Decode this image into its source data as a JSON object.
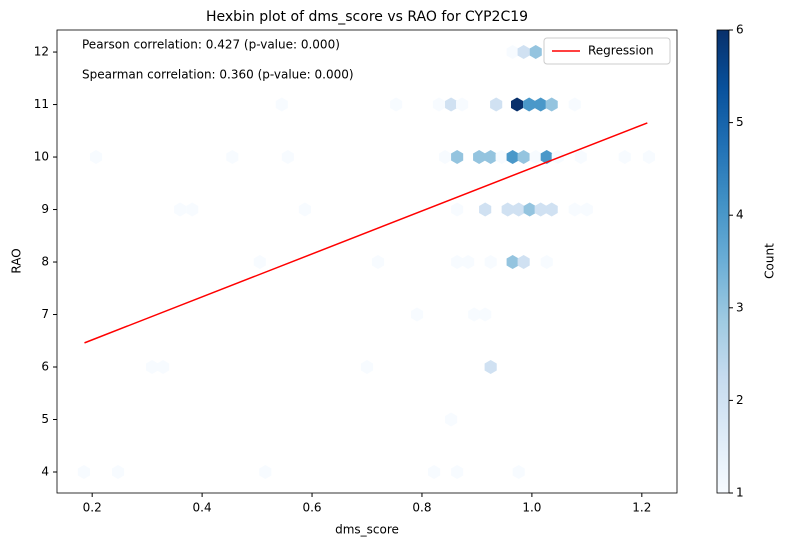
{
  "chart_data": {
    "type": "hexbin",
    "title": "Hexbin plot of dms_score vs RAO for CYP2C19",
    "xlabel": "dms_score",
    "ylabel": "RAO",
    "xlim": [
      0.136,
      1.264
    ],
    "ylim": [
      3.6,
      12.42
    ],
    "xticks": [
      0.2,
      0.4,
      0.6,
      0.8,
      {
        "value": 1,
        "label": "1.0"
      },
      1.2
    ],
    "yticks": [
      4,
      5,
      6,
      7,
      8,
      9,
      10,
      11,
      12
    ],
    "hexes": {
      "x": [
        0.965,
        0.985,
        1.007,
        0.545,
        0.753,
        0.831,
        0.853,
        0.873,
        0.935,
        0.973,
        0.995,
        1.016,
        1.036,
        1.078,
        0.207,
        0.455,
        0.556,
        0.842,
        0.864,
        0.904,
        0.925,
        0.945,
        0.965,
        0.985,
        1.007,
        1.027,
        1.047,
        1.089,
        1.169,
        1.213,
        0.36,
        0.382,
        0.587,
        0.864,
        0.915,
        0.956,
        0.976,
        0.996,
        1.016,
        1.036,
        1.078,
        1.1,
        0.505,
        0.72,
        0.864,
        0.884,
        0.925,
        0.965,
        0.985,
        1.027,
        0.791,
        0.895,
        0.915,
        0.309,
        0.329,
        0.7,
        0.925,
        0.853,
        0.185,
        0.247,
        0.515,
        0.822,
        0.864,
        0.976
      ],
      "y": [
        12,
        12,
        12,
        11,
        11,
        11,
        11,
        11,
        11,
        11,
        11,
        11,
        11,
        11,
        10,
        10,
        10,
        10,
        10,
        10,
        10,
        10,
        10,
        10,
        10,
        10,
        10,
        10,
        10,
        10,
        9,
        9,
        9,
        9,
        9,
        9,
        9,
        9,
        9,
        9,
        9,
        9,
        8,
        8,
        8,
        8,
        8,
        8,
        8,
        8,
        7,
        7,
        7,
        6,
        6,
        6,
        6,
        5,
        4,
        4,
        4,
        4,
        4,
        4
      ],
      "counts": [
        1,
        2,
        3,
        1,
        1,
        1,
        2,
        1,
        2,
        6,
        4,
        4,
        3,
        1,
        1,
        1,
        1,
        1,
        3,
        3,
        3,
        1,
        4,
        3,
        1,
        4,
        1,
        1,
        1,
        1,
        1,
        1,
        1,
        1,
        2,
        2,
        2,
        3,
        2,
        2,
        1,
        1,
        1,
        1,
        1,
        1,
        1,
        3,
        2,
        1,
        1,
        1,
        1,
        1,
        1,
        1,
        2,
        1,
        1,
        1,
        1,
        1,
        1,
        1
      ]
    },
    "lines": [
      {
        "name": "Regression",
        "color": "#ff0000",
        "x": [
          0.186,
          1.21
        ],
        "y": [
          6.46,
          10.65
        ]
      }
    ],
    "legend": "upper right",
    "annotations": [
      "Pearson correlation: 0.427 (p-value: 0.000)",
      "Spearman correlation: 0.360 (p-value: 0.000)"
    ],
    "colorbar": {
      "label": "Count",
      "lim": [
        1,
        6
      ],
      "ticks": [
        1,
        2,
        3,
        4,
        5,
        6
      ],
      "colors": [
        "#f7fbff",
        "#deebf7",
        "#c6dbef",
        "#9ecae1",
        "#6baed6",
        "#4292c6",
        "#2171b5",
        "#08519c",
        "#08306b"
      ]
    }
  }
}
